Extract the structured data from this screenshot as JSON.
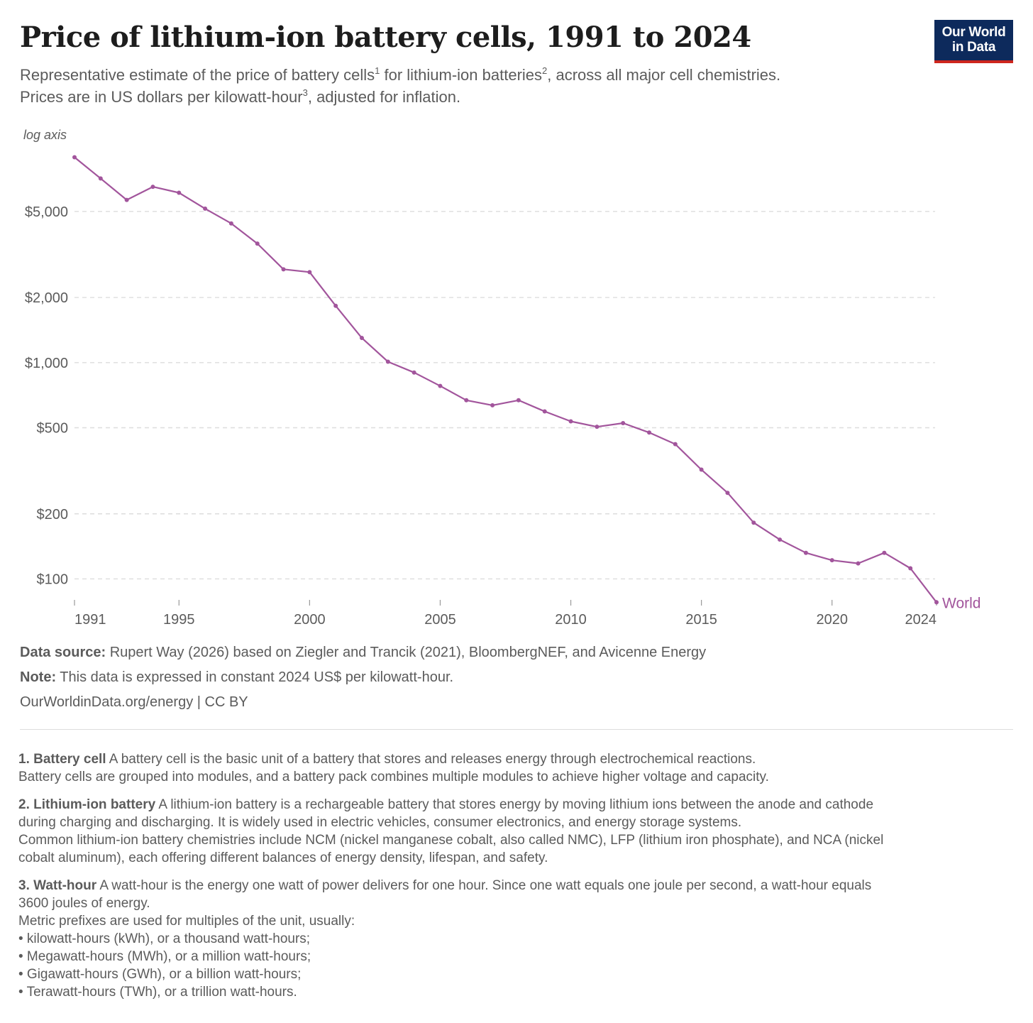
{
  "header": {
    "title": "Price of lithium-ion battery cells, 1991 to 2024",
    "subtitle_line1_a": "Representative estimate of the price of battery cells",
    "subtitle_line1_sup1": "1",
    "subtitle_line1_b": " for lithium-ion batteries",
    "subtitle_line1_sup2": "2",
    "subtitle_line1_c": ", across all major cell chemistries.",
    "subtitle_line2_a": "Prices are in US dollars per kilowatt-hour",
    "subtitle_line2_sup3": "3",
    "subtitle_line2_b": ", adjusted for inflation.",
    "logo_line1": "Our World",
    "logo_line2": "in Data"
  },
  "colors": {
    "series": "#a2559c",
    "grid": "#dddddd",
    "axis_text": "#5b5b5b",
    "logo_bg": "#0d2a5c",
    "logo_accent": "#ce261e"
  },
  "chart_data": {
    "type": "line",
    "scale_note": "log axis",
    "y_scale": "log",
    "ylim": [
      80,
      8800
    ],
    "xlim": [
      1991,
      2024
    ],
    "y_ticks": [
      {
        "value": 100,
        "label": "$100"
      },
      {
        "value": 200,
        "label": "$200"
      },
      {
        "value": 500,
        "label": "$500"
      },
      {
        "value": 1000,
        "label": "$1,000"
      },
      {
        "value": 2000,
        "label": "$2,000"
      },
      {
        "value": 5000,
        "label": "$5,000"
      }
    ],
    "x_ticks": [
      {
        "value": 1991,
        "label": "1991"
      },
      {
        "value": 1995,
        "label": "1995"
      },
      {
        "value": 2000,
        "label": "2000"
      },
      {
        "value": 2005,
        "label": "2005"
      },
      {
        "value": 2010,
        "label": "2010"
      },
      {
        "value": 2015,
        "label": "2015"
      },
      {
        "value": 2020,
        "label": "2020"
      },
      {
        "value": 2024,
        "label": "2024"
      }
    ],
    "grid": true,
    "series": [
      {
        "name": "World",
        "x": [
          1991,
          1992,
          1993,
          1994,
          1995,
          1996,
          1997,
          1998,
          1999,
          2000,
          2001,
          2002,
          2003,
          2004,
          2005,
          2006,
          2007,
          2008,
          2009,
          2010,
          2011,
          2012,
          2013,
          2014,
          2015,
          2016,
          2017,
          2018,
          2019,
          2020,
          2021,
          2022,
          2023,
          2024
        ],
        "y": [
          8900,
          7100,
          5650,
          6500,
          6100,
          5150,
          4400,
          3550,
          2700,
          2620,
          1830,
          1300,
          1010,
          900,
          780,
          670,
          635,
          670,
          595,
          535,
          505,
          525,
          475,
          420,
          320,
          250,
          182,
          152,
          132,
          122,
          118,
          132,
          112,
          78
        ]
      }
    ]
  },
  "footer": {
    "source_label": "Data source:",
    "source_text": " Rupert Way (2026) based on Ziegler and Trancik (2021), BloombergNEF, and Avicenne Energy",
    "note_label": "Note:",
    "note_text": " This data is expressed in constant 2024 US$ per kilowatt-hour.",
    "url_license": "OurWorldinData.org/energy | CC BY"
  },
  "footnotes": [
    {
      "label": "1. Battery cell",
      "lines": [
        " A battery cell is the basic unit of a battery that stores and releases energy through electrochemical reactions.",
        "Battery cells are grouped into modules, and a battery pack combines multiple modules to achieve higher voltage and capacity."
      ]
    },
    {
      "label": "2. Lithium-ion battery",
      "lines": [
        " A lithium-ion battery is a rechargeable battery that stores energy by moving lithium ions between the anode and cathode",
        "during charging and discharging. It is widely used in electric vehicles, consumer electronics, and energy storage systems.",
        "Common lithium-ion battery chemistries include NCM (nickel manganese cobalt, also called NMC), LFP (lithium iron phosphate), and NCA (nickel",
        "cobalt aluminum), each offering different balances of energy density, lifespan, and safety."
      ]
    },
    {
      "label": "3. Watt-hour",
      "lines": [
        " A watt-hour is the energy one watt of power delivers for one hour. Since one watt equals one joule per second, a watt-hour equals",
        "3600 joules of energy.",
        "Metric prefixes are used for multiples of the unit, usually:",
        "• kilowatt-hours (kWh), or a thousand watt-hours;",
        "• Megawatt-hours (MWh), or a million watt-hours;",
        "• Gigawatt-hours (GWh), or a billion watt-hours;",
        "• Terawatt-hours (TWh), or a trillion watt-hours."
      ]
    }
  ]
}
